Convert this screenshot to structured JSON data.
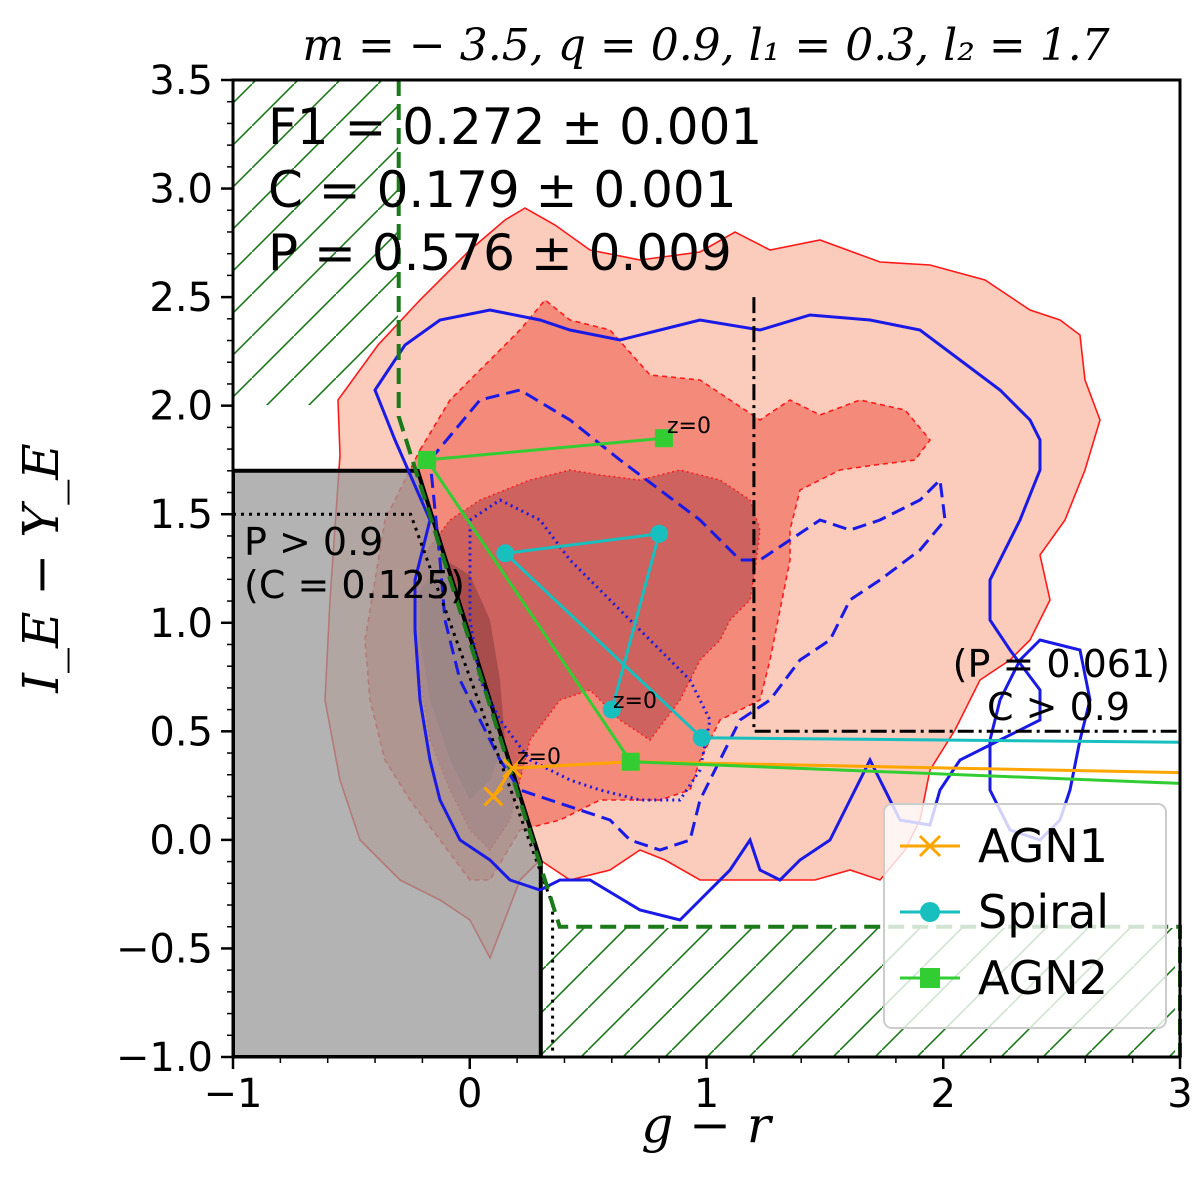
{
  "chart_data": {
    "type": "contour",
    "title": "m = − 3.5, q = 0.9, l₁ = 0.3, l₂ = 1.7",
    "xlabel": "g − r",
    "ylabel": "I_E − Y_E",
    "xlim": [
      -1,
      3
    ],
    "ylim": [
      -1.0,
      3.5
    ],
    "x_ticks": [
      "−1",
      "0",
      "1",
      "2",
      "3"
    ],
    "x_tick_values": [
      -1,
      0,
      1,
      2,
      3
    ],
    "y_ticks": [
      "−1.0",
      "−0.5",
      "0.0",
      "0.5",
      "1.0",
      "1.5",
      "2.0",
      "2.5",
      "3.0",
      "3.5"
    ],
    "y_tick_values": [
      -1.0,
      -0.5,
      0.0,
      0.5,
      1.0,
      1.5,
      2.0,
      2.5,
      3.0,
      3.5
    ],
    "stats": {
      "f1": "F1 = 0.272 ± 0.001",
      "c": "C = 0.179 ± 0.001",
      "p": "P = 0.576 ± 0.009"
    },
    "annotations": {
      "high_purity": "P > 0.9",
      "high_purity_c": "(C = 0.125)",
      "high_comp_p": "(P = 0.061)",
      "high_comp": "C > 0.9",
      "z0": "z=0"
    },
    "selection_region": [
      [
        -1.0,
        1.7
      ],
      [
        -0.22,
        1.7
      ],
      [
        0.3,
        -0.1
      ],
      [
        0.3,
        -1.0
      ],
      [
        -1.0,
        -1.0
      ]
    ],
    "purity_cut_line": [
      [
        -1.0,
        1.5
      ],
      [
        -0.25,
        1.5
      ],
      [
        0.35,
        -0.3
      ],
      [
        0.35,
        -1.0
      ]
    ],
    "completeness_cut_line": [
      [
        1.2,
        2.5
      ],
      [
        1.2,
        0.5
      ],
      [
        3.0,
        0.5
      ]
    ],
    "green_exclusion_boundary": [
      [
        -0.3,
        3.5
      ],
      [
        -0.3,
        1.95
      ],
      [
        0.38,
        -0.4
      ],
      [
        3.0,
        -0.4
      ],
      [
        3.0,
        -1.0
      ]
    ],
    "series": [
      {
        "name": "AGN1",
        "color": "#ffa500",
        "marker": "x",
        "x": [
          0.1,
          0.18,
          0.68,
          3.0
        ],
        "y": [
          0.2,
          0.33,
          0.36,
          0.31
        ]
      },
      {
        "name": "Spiral",
        "color": "#17bfbf",
        "marker": "circle",
        "x": [
          0.6,
          0.8,
          0.15,
          0.98,
          3.0
        ],
        "y": [
          0.6,
          1.41,
          1.32,
          0.47,
          0.45
        ]
      },
      {
        "name": "AGN2",
        "color": "#32cd32",
        "marker": "square",
        "x": [
          0.82,
          -0.18,
          0.68,
          3.0
        ],
        "y": [
          1.85,
          1.75,
          0.36,
          0.26
        ]
      }
    ],
    "legend": {
      "position": "bottom-right",
      "entries": [
        "AGN1",
        "Spiral",
        "AGN2"
      ]
    },
    "colors": {
      "contour_light": "#fbcbbc",
      "contour_mid": "#f48a7a",
      "contour_dark": "#c65a5a",
      "contour_line_red": "#ff1a1a",
      "contour_line_blue": "#1a1ae6",
      "selection_grey": "#b3b3b3",
      "hatch_green": "#1a7a1a"
    }
  }
}
